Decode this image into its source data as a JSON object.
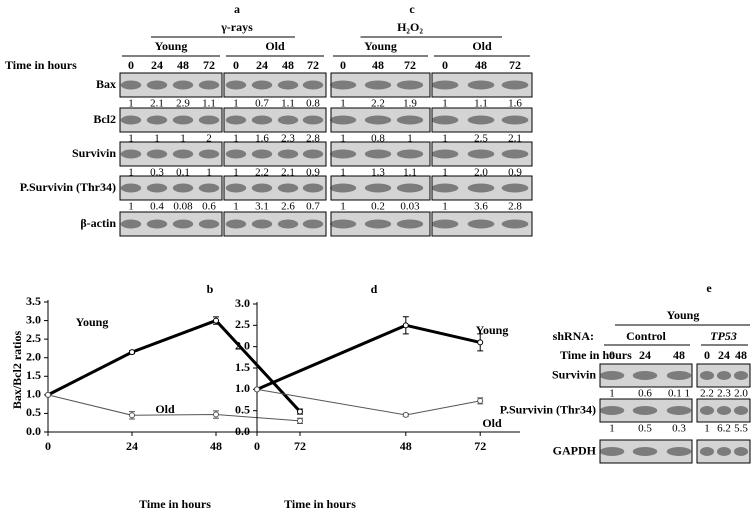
{
  "panels": [
    {
      "letter": "a",
      "treatment": "γ-rays",
      "time_label": "Time in hours",
      "groups": [
        {
          "name": "Young",
          "times": [
            0,
            24,
            48,
            72
          ]
        },
        {
          "name": "Old",
          "times": [
            0,
            24,
            48,
            72
          ]
        }
      ],
      "rows": [
        {
          "label": "Bax",
          "values": [
            [
              "1",
              "2.1",
              "2.9",
              "1.1"
            ],
            [
              "1",
              "0.7",
              "1.1",
              "0.8"
            ]
          ]
        },
        {
          "label": "Bcl2",
          "values": [
            [
              "1",
              "1",
              "1",
              "2"
            ],
            [
              "1",
              "1.6",
              "2.3",
              "2.8"
            ]
          ]
        },
        {
          "label": "Survivin",
          "values": [
            [
              "1",
              "0.3",
              "0.1",
              "1"
            ],
            [
              "1",
              "2.2",
              "2.1",
              "0.9"
            ]
          ]
        },
        {
          "label": "P.Survivin (Thr34)",
          "values": [
            [
              "1",
              "0.4",
              "0.08",
              "0.6"
            ],
            [
              "1",
              "3.1",
              "2.6",
              "0.7"
            ]
          ]
        },
        {
          "label": "β-actin"
        }
      ]
    },
    {
      "letter": "c",
      "treatment": "H₂O₂",
      "groups": [
        {
          "name": "Young",
          "times": [
            0,
            48,
            72
          ]
        },
        {
          "name": "Old",
          "times": [
            0,
            48,
            72
          ]
        }
      ],
      "rows": [
        {
          "values": [
            [
              "1",
              "2.2",
              "1.9"
            ],
            [
              "1",
              "1.1",
              "1.6"
            ]
          ]
        },
        {
          "values": [
            [
              "1",
              "0.8",
              "1"
            ],
            [
              "1",
              "2.5",
              "2.1"
            ]
          ]
        },
        {
          "values": [
            [
              "1",
              "1.3",
              "1.1"
            ],
            [
              "1",
              "2.0",
              "0.9"
            ]
          ]
        },
        {
          "values": [
            [
              "1",
              "0.2",
              "0.03"
            ],
            [
              "1",
              "3.6",
              "2.8"
            ]
          ]
        },
        {}
      ]
    },
    {
      "letter": "e",
      "treatment": "Young",
      "shrna_label": "shRNA:",
      "time_label": "Time in hours",
      "groups": [
        {
          "name": "Control",
          "times": [
            0,
            24,
            48
          ]
        },
        {
          "name": "TP53",
          "italic": true,
          "times": [
            0,
            24,
            48
          ]
        }
      ],
      "rows": [
        {
          "label": "Survivin",
          "values": [
            [
              "1",
              "0.6",
              "0.1 1"
            ],
            [
              "2.2",
              "2.3",
              "2.0"
            ]
          ]
        },
        {
          "label": "P.Survivin (Thr34)",
          "values": [
            [
              "1",
              "0.5",
              "0.3"
            ],
            [
              "1",
              "6.2",
              "5.5"
            ]
          ]
        },
        {
          "label": "GAPDH"
        }
      ]
    }
  ],
  "chart_data": [
    {
      "type": "line",
      "letter": "b",
      "ylabel": "Bax/Bcl2 ratios",
      "xlabel": "Time in hours",
      "x": [
        0,
        24,
        48,
        72
      ],
      "xlim": [
        0,
        72
      ],
      "xticks": [
        0,
        24,
        48,
        72
      ],
      "ylim": [
        0,
        3.5
      ],
      "yticks": [
        {
          "value": 0,
          "label": "0.0"
        },
        0.5,
        {
          "value": 1,
          "label": "1.0"
        },
        1.5,
        {
          "value": 2,
          "label": "2.0"
        },
        2.5,
        {
          "value": 3,
          "label": "3.0"
        },
        3.5
      ],
      "series": [
        {
          "name": "Young",
          "color": "#000000",
          "line_width": 3,
          "values": [
            1,
            2.15,
            3.0,
            0.55
          ],
          "errors": [
            null,
            0.04,
            0.1,
            0.07
          ]
        },
        {
          "name": "Old",
          "color": "#555555",
          "line_width": 1,
          "values": [
            1,
            0.45,
            0.47,
            0.3
          ],
          "errors": [
            null,
            0.1,
            0.1,
            0.07
          ]
        }
      ]
    },
    {
      "type": "line",
      "letter": "d",
      "xlabel": "Time in hours",
      "x": [
        0,
        48,
        72
      ],
      "xlim": [
        0,
        80
      ],
      "xticks": [
        0,
        48,
        72
      ],
      "ylim": [
        0,
        3
      ],
      "yticks": [
        {
          "value": 0,
          "label": "0.0"
        },
        0.5,
        {
          "value": 1,
          "label": "1.0"
        },
        1.5,
        {
          "value": 2,
          "label": "2.0"
        },
        2.5,
        {
          "value": 3,
          "label": "3.0"
        }
      ],
      "series": [
        {
          "name": "Young",
          "color": "#000000",
          "line_width": 3,
          "values": [
            1,
            2.5,
            2.1
          ],
          "errors": [
            null,
            0.2,
            0.2
          ]
        },
        {
          "name": "Old",
          "color": "#555555",
          "line_width": 1,
          "values": [
            1,
            0.4,
            0.73
          ],
          "errors": [
            null,
            0.03,
            0.07
          ]
        }
      ]
    }
  ]
}
